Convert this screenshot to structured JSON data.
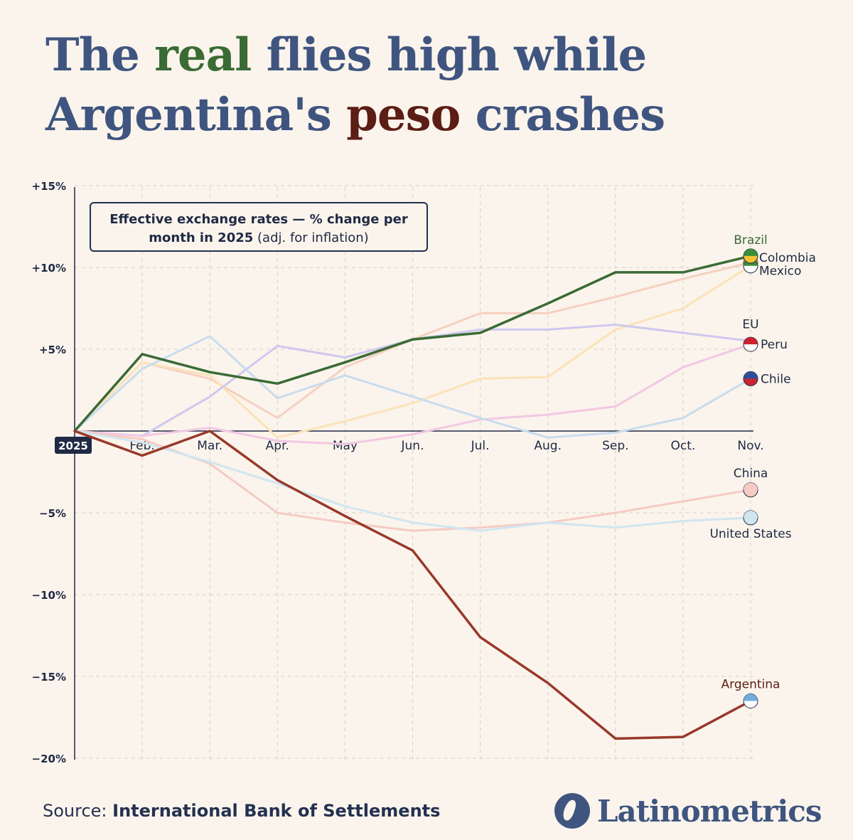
{
  "title": {
    "line1_before": "The ",
    "line1_highlight": "real",
    "line1_after": " flies high while",
    "line2_before": "Argentina's ",
    "line2_highlight": "peso",
    "line2_after": " crashes"
  },
  "legend_box": {
    "bold_text": "Effective exchange rates — % change per month in 2025",
    "normal_text": "(adj. for inflation)"
  },
  "footer": {
    "source_label": "Source:",
    "source_name": "International Bank of Settlements",
    "brand": "Latinometrics"
  },
  "colors": {
    "background": "#fbf4ec",
    "title": "#3f5580",
    "real": "#3a6b35",
    "peso": "#5b1d14"
  },
  "chart_data": {
    "type": "line",
    "title": "The real flies high while Argentina's peso crashes",
    "subtitle": "Effective exchange rates — % change per month in 2025 (adj. for inflation)",
    "xlabel": "",
    "ylabel": "",
    "categories": [
      "2025",
      "Feb.",
      "Mar.",
      "Apr.",
      "May",
      "Jun.",
      "Jul.",
      "Aug.",
      "Sep.",
      "Oct.",
      "Nov."
    ],
    "y_ticks": [
      15,
      10,
      5,
      0,
      -5,
      -10,
      -15,
      -20
    ],
    "y_tick_labels": [
      "+15%",
      "+10%",
      "+5%",
      "",
      "−5%",
      "−10%",
      "−15%",
      "−20%"
    ],
    "ylim": [
      -20,
      15
    ],
    "grid": true,
    "series": [
      {
        "name": "Colombia",
        "color": "#f5d0c1",
        "width": 3,
        "label_pos": "right-near",
        "values": [
          0,
          4.2,
          3.2,
          0.8,
          3.9,
          5.6,
          7.2,
          7.2,
          8.2,
          9.3,
          10.3
        ]
      },
      {
        "name": "Mexico",
        "color": "#fae3b8",
        "width": 3,
        "label_pos": "right-below",
        "values": [
          0,
          4.2,
          3.4,
          -0.4,
          0.6,
          1.7,
          3.2,
          3.3,
          6.2,
          7.5,
          10.1
        ]
      },
      {
        "name": "EU",
        "color": "#cfc8ee",
        "width": 3,
        "label_pos": "above",
        "values": [
          0,
          -0.3,
          2.1,
          5.2,
          4.5,
          5.6,
          6.2,
          6.2,
          6.5,
          6.0,
          5.5
        ]
      },
      {
        "name": "Peru",
        "color": "#f2c8e2",
        "width": 3,
        "label_pos": "right",
        "values": [
          0,
          -0.3,
          0.2,
          -0.6,
          -0.8,
          -0.2,
          0.7,
          1.0,
          1.5,
          3.9,
          5.3
        ]
      },
      {
        "name": "Chile",
        "color": "#c8dcee",
        "width": 3,
        "label_pos": "right",
        "values": [
          0,
          3.8,
          5.8,
          2.0,
          3.4,
          2.1,
          0.8,
          -0.4,
          -0.1,
          0.8,
          3.2
        ]
      },
      {
        "name": "China",
        "color": "#f5cbc3",
        "width": 3,
        "label_pos": "above",
        "values": [
          0,
          -0.5,
          -2.0,
          -5.0,
          -5.6,
          -6.1,
          -5.9,
          -5.6,
          -5.0,
          -4.3,
          -3.6
        ]
      },
      {
        "name": "United States",
        "color": "#cfe6f0",
        "width": 3,
        "label_pos": "below",
        "values": [
          0,
          -0.7,
          -1.9,
          -3.2,
          -4.6,
          -5.6,
          -6.1,
          -5.6,
          -5.9,
          -5.5,
          -5.3
        ]
      },
      {
        "name": "Brazil",
        "color": "#3a6b35",
        "width": 3.5,
        "label_pos": "above",
        "values": [
          0,
          4.7,
          3.6,
          2.9,
          4.2,
          5.6,
          6.0,
          7.8,
          9.7,
          9.7,
          10.7
        ]
      },
      {
        "name": "Argentina",
        "color": "#98392a",
        "width": 3.5,
        "label_pos": "above",
        "values": [
          0,
          -1.5,
          0,
          -3.0,
          -5.2,
          -7.3,
          -12.6,
          -15.4,
          -18.8,
          -18.7,
          -16.5
        ]
      }
    ],
    "end_label_colors": {
      "Brazil": "#3a6b35",
      "Colombia": "#1f2a44",
      "Mexico": "#1f2a44",
      "EU": "#1f2a44",
      "Peru": "#1f2a44",
      "Chile": "#1f2a44",
      "China": "#1f2a44",
      "United States": "#1f2a44",
      "Argentina": "#5b1d14"
    },
    "flag_colors": {
      "Brazil": [
        "#3a8d3a",
        "#f2c230"
      ],
      "Colombia": [
        "#f2c230",
        "#2d4f9b"
      ],
      "Mexico": [
        "#3a8d3a",
        "#ffffff"
      ],
      "Peru": [
        "#c9242f",
        "#ffffff"
      ],
      "Chile": [
        "#2d4f9b",
        "#c9242f"
      ],
      "Argentina": [
        "#74acdf",
        "#ffffff"
      ],
      "China": [
        "#f5cbc3",
        "#f5cbc3"
      ],
      "United States": [
        "#cfe6f0",
        "#cfe6f0"
      ]
    }
  }
}
